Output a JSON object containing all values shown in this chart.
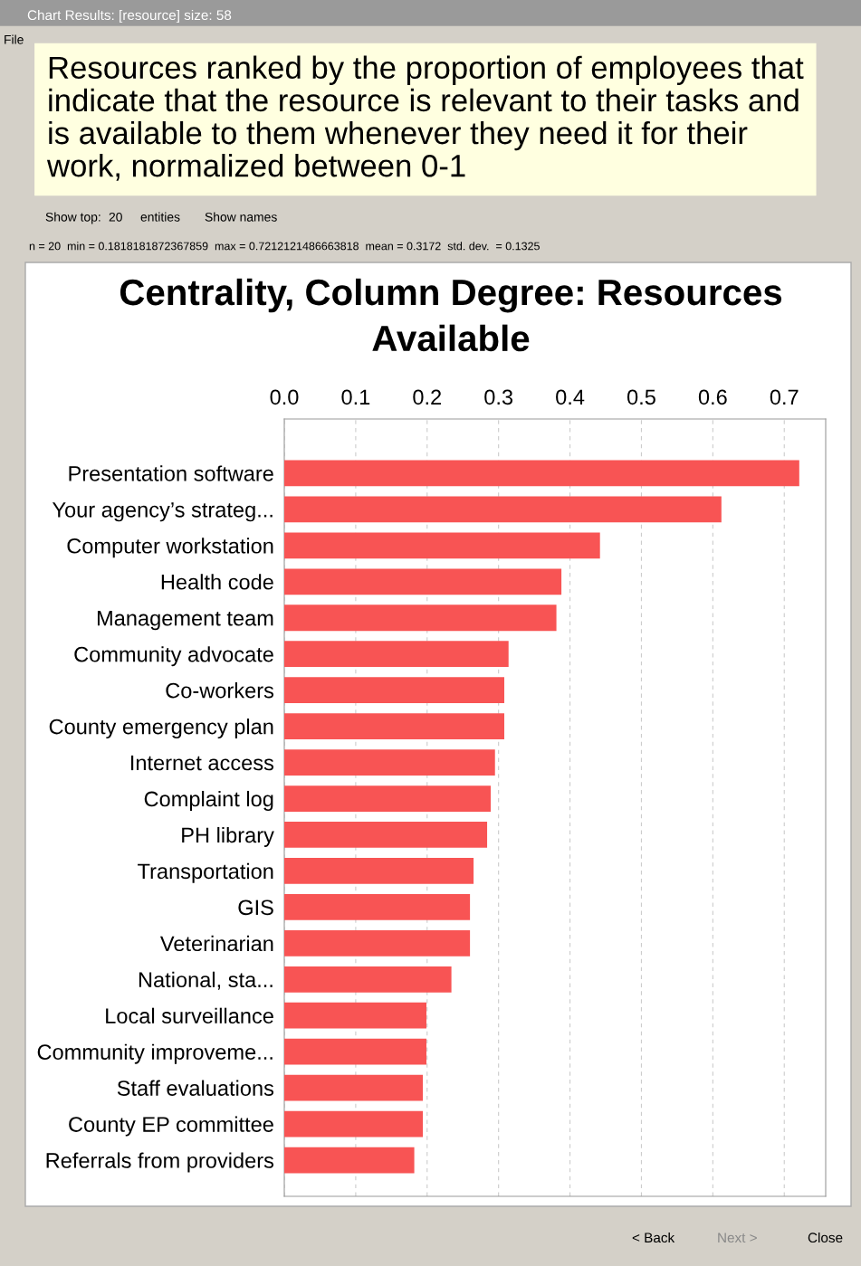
{
  "chart_data": {
    "type": "bar",
    "orientation": "horizontal",
    "title": "Centrality, Column Degree: Resources Available",
    "subtitle": "Resources ranked by the proportion of employees that indicate that the resource is relevant to their tasks and is available to them whenever they need it for their work, normalized between 0-1",
    "annotations": [
      "Chart Results: [resource] size: 58",
      "File",
      "Show top:",
      "20",
      "entities",
      "Show names",
      "n = 20  min = 0.1818181872367859  max = 0.7212121486663818  mean = 0.3172  std. dev.  = 0.1325",
      "< Back",
      "Next >",
      "Close"
    ],
    "categories": [
      "Presentation software",
      "Your agency’s strateg...",
      "Computer workstation",
      "Health code",
      "Management team",
      "Community advocate",
      "Co-workers",
      "County emergency plan",
      "Internet access",
      "Complaint log",
      "PH library",
      "Transportation",
      "GIS",
      "Veterinarian",
      "National, sta...",
      "Local surveillance",
      "Community improveme...",
      "Staff evaluations",
      "County EP committee",
      "Referrals from providers"
    ],
    "values": [
      0.721,
      0.612,
      0.442,
      0.388,
      0.381,
      0.314,
      0.308,
      0.308,
      0.295,
      0.289,
      0.284,
      0.265,
      0.26,
      0.26,
      0.234,
      0.199,
      0.199,
      0.194,
      0.194,
      0.182
    ],
    "color": "#f85454",
    "xlim": [
      0,
      0.758
    ],
    "xticks": [
      {
        "value": 0,
        "label": "0.0"
      },
      0.1,
      0.2,
      0.3,
      0.4,
      0.5,
      0.6,
      0.7
    ],
    "grid": "x"
  }
}
